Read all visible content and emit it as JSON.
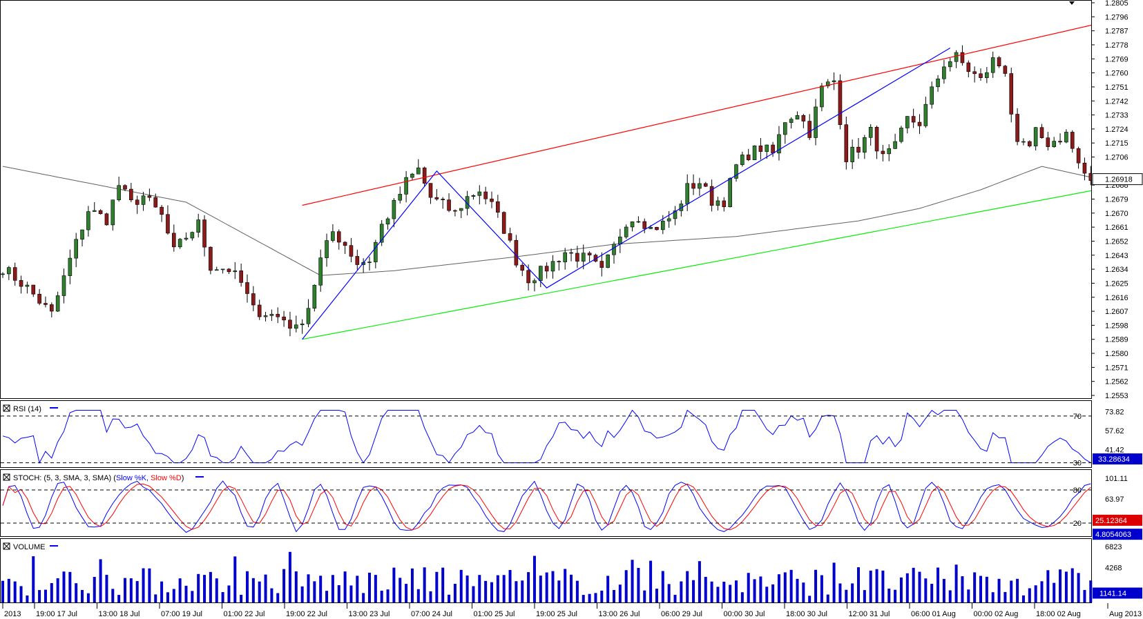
{
  "chart_data": {
    "type": "candlestick",
    "price_axis": {
      "range": [
        1.2553,
        1.2805
      ],
      "ticks": [
        "1.2805",
        "1.2796",
        "1.2787",
        "1.2778",
        "1.2769",
        "1.2760",
        "1.2751",
        "1.2742",
        "1.2733",
        "1.2724",
        "1.2715",
        "1.2706",
        "1.2688",
        "1.2679",
        "1.2670",
        "1.2661",
        "1.2652",
        "1.2643",
        "1.2634",
        "1.2625",
        "1.2616",
        "1.2607",
        "1.2598",
        "1.2589",
        "1.2580",
        "1.2571",
        "1.2562",
        "1.2553"
      ],
      "current_price_label": "1.26918",
      "current_price": 1.26918
    },
    "time_axis": [
      "2013",
      "19:00 17 Jul",
      "13:00 18 Jul",
      "07:00 19 Jul",
      "01:00 22 Jul",
      "19:00 22 Jul",
      "13:00 23 Jul",
      "07:00 24 Jul",
      "01:00 25 Jul",
      "19:00 25 Jul",
      "13:00 26 Jul",
      "06:00 29 Jul",
      "00:00 30 Jul",
      "18:00 30 Jul",
      "12:00 31 Jul",
      "06:00 01 Aug",
      "00:00 02 Aug",
      "18:00 02 Aug",
      "Aug 2013"
    ],
    "candle_count": 170,
    "price_anchors": [
      [
        0,
        1.2635
      ],
      [
        4,
        1.2622
      ],
      [
        8,
        1.2605
      ],
      [
        11,
        1.264
      ],
      [
        14,
        1.2672
      ],
      [
        17,
        1.2666
      ],
      [
        19,
        1.2688
      ],
      [
        21,
        1.2676
      ],
      [
        23,
        1.2681
      ],
      [
        26,
        1.2668
      ],
      [
        28,
        1.2645
      ],
      [
        30,
        1.2655
      ],
      [
        32,
        1.2663
      ],
      [
        34,
        1.2636
      ],
      [
        37,
        1.2634
      ],
      [
        39,
        1.2625
      ],
      [
        41,
        1.2608
      ],
      [
        43,
        1.2606
      ],
      [
        46,
        1.2602
      ],
      [
        48,
        1.2595
      ],
      [
        50,
        1.261
      ],
      [
        52,
        1.264
      ],
      [
        54,
        1.2658
      ],
      [
        56,
        1.265
      ],
      [
        58,
        1.2638
      ],
      [
        60,
        1.264
      ],
      [
        62,
        1.2662
      ],
      [
        64,
        1.2675
      ],
      [
        66,
        1.269
      ],
      [
        68,
        1.2698
      ],
      [
        70,
        1.268
      ],
      [
        72,
        1.2675
      ],
      [
        74,
        1.267
      ],
      [
        76,
        1.268
      ],
      [
        78,
        1.2685
      ],
      [
        80,
        1.2675
      ],
      [
        82,
        1.266
      ],
      [
        84,
        1.264
      ],
      [
        86,
        1.2628
      ],
      [
        88,
        1.2632
      ],
      [
        90,
        1.2638
      ],
      [
        92,
        1.2645
      ],
      [
        94,
        1.2642
      ],
      [
        96,
        1.264
      ],
      [
        98,
        1.2632
      ],
      [
        100,
        1.2648
      ],
      [
        102,
        1.2665
      ],
      [
        104,
        1.2668
      ],
      [
        106,
        1.266
      ],
      [
        108,
        1.2663
      ],
      [
        110,
        1.267
      ],
      [
        112,
        1.2686
      ],
      [
        114,
        1.269
      ],
      [
        116,
        1.2678
      ],
      [
        118,
        1.2678
      ],
      [
        120,
        1.27
      ],
      [
        122,
        1.2708
      ],
      [
        124,
        1.2712
      ],
      [
        126,
        1.2708
      ],
      [
        128,
        1.273
      ],
      [
        130,
        1.2735
      ],
      [
        132,
        1.2722
      ],
      [
        134,
        1.275
      ],
      [
        136,
        1.2755
      ],
      [
        138,
        1.2706
      ],
      [
        140,
        1.2712
      ],
      [
        142,
        1.2722
      ],
      [
        144,
        1.2705
      ],
      [
        146,
        1.2712
      ],
      [
        148,
        1.273
      ],
      [
        150,
        1.2728
      ],
      [
        152,
        1.2748
      ],
      [
        154,
        1.2766
      ],
      [
        156,
        1.277
      ],
      [
        158,
        1.2762
      ],
      [
        160,
        1.2755
      ],
      [
        162,
        1.2768
      ],
      [
        164,
        1.2762
      ],
      [
        165,
        1.2735
      ],
      [
        166,
        1.2712
      ],
      [
        168,
        1.2712
      ],
      [
        169,
        1.2722
      ],
      [
        170,
        1.2715
      ],
      [
        172,
        1.2715
      ],
      [
        174,
        1.2722
      ],
      [
        176,
        1.27
      ],
      [
        177,
        1.2692
      ],
      [
        178,
        1.2691
      ]
    ],
    "moving_average_anchors": [
      [
        0,
        1.27
      ],
      [
        30,
        1.2677
      ],
      [
        52,
        1.263
      ],
      [
        64,
        1.2633
      ],
      [
        84,
        1.2642
      ],
      [
        100,
        1.265
      ],
      [
        120,
        1.2655
      ],
      [
        140,
        1.2665
      ],
      [
        150,
        1.2673
      ],
      [
        160,
        1.2685
      ],
      [
        170,
        1.27
      ],
      [
        178,
        1.2693
      ]
    ],
    "trendlines": [
      {
        "color": "#ff0000",
        "points": [
          [
            49,
            1.2675
          ],
          [
            183,
            1.2795
          ]
        ]
      },
      {
        "color": "#00ee00",
        "points": [
          [
            49,
            1.2589
          ],
          [
            183,
            1.2688
          ]
        ]
      },
      {
        "color": "#0000ff",
        "points": [
          [
            49,
            1.2589
          ],
          [
            71,
            1.2697
          ],
          [
            89,
            1.2622
          ],
          [
            155,
            1.2776
          ]
        ]
      }
    ],
    "rsi": {
      "title": "RSI (14)",
      "ticks": [
        "73.82",
        "57.62",
        "41.42"
      ],
      "levels": [
        70,
        30
      ],
      "level_labels": [
        "70",
        "30"
      ],
      "current_label": "33.28634",
      "range": [
        28,
        80
      ]
    },
    "stoch": {
      "title_prefix": "STOCH: (5, 3, SMA, 3, SMA)",
      "k_label": "Slow %K,",
      "d_label": "Slow %D",
      "k_color": "#0000ff",
      "d_color": "#ff0000",
      "ticks": [
        "101.11",
        "63.97"
      ],
      "levels": [
        80,
        20
      ],
      "level_labels": [
        "80",
        "20"
      ],
      "current_labels": [
        "25.12364",
        "4.8054063"
      ],
      "range": [
        0,
        110
      ]
    },
    "volume": {
      "title": "VOLUME",
      "ticks": [
        "6823",
        "4268"
      ],
      "current_label": "1141.14",
      "max": 7500
    }
  }
}
